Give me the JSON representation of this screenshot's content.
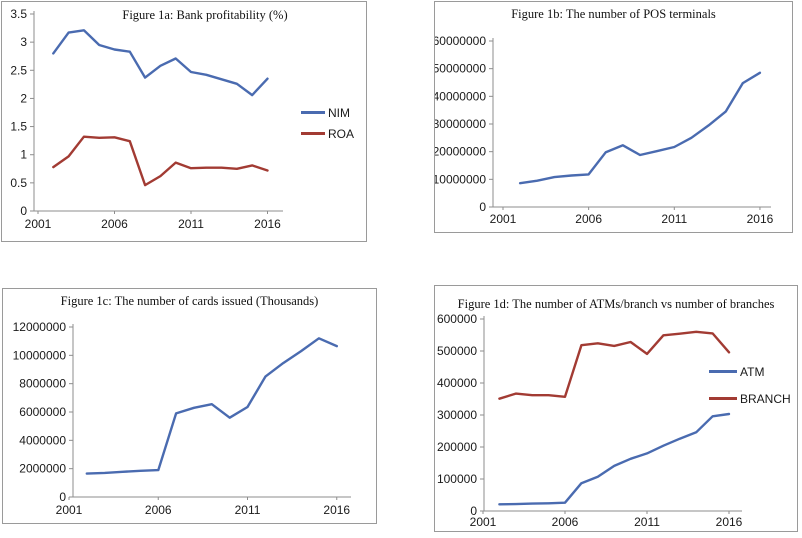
{
  "chart_data": [
    {
      "id": "fig1a",
      "type": "line",
      "title": "Figure 1a: Bank profitability (%)",
      "x": [
        2002,
        2003,
        2004,
        2005,
        2006,
        2007,
        2008,
        2009,
        2010,
        2011,
        2012,
        2013,
        2014,
        2015,
        2016
      ],
      "x_tick_labels": [
        2001,
        2006,
        2011,
        2016
      ],
      "ylim": [
        0,
        3.5
      ],
      "y_tick_step": 0.5,
      "grid": false,
      "legend_position": "right",
      "series": [
        {
          "name": "NIM",
          "color": "#4a6bb0",
          "values": [
            2.8,
            3.17,
            3.21,
            2.95,
            2.87,
            2.83,
            2.37,
            2.58,
            2.71,
            2.47,
            2.42,
            2.34,
            2.26,
            2.06,
            2.35
          ]
        },
        {
          "name": "ROA",
          "color": "#a23b33",
          "values": [
            0.78,
            0.97,
            1.32,
            1.3,
            1.31,
            1.24,
            0.46,
            0.62,
            0.86,
            0.76,
            0.77,
            0.77,
            0.75,
            0.81,
            0.72
          ]
        }
      ]
    },
    {
      "id": "fig1b",
      "type": "line",
      "title": "Figure 1b: The number of POS terminals",
      "x": [
        2002,
        2003,
        2004,
        2005,
        2006,
        2007,
        2008,
        2009,
        2010,
        2011,
        2012,
        2013,
        2014,
        2015,
        2016
      ],
      "x_tick_labels": [
        2001,
        2006,
        2011,
        2016
      ],
      "ylim": [
        0,
        60000000
      ],
      "y_tick_step": 10000000,
      "grid": false,
      "legend_position": "none",
      "series": [
        {
          "color": "#4a6bb0",
          "values": [
            8600000,
            9500000,
            10800000,
            11400000,
            11800000,
            19800000,
            22300000,
            18800000,
            20200000,
            21700000,
            25000000,
            29500000,
            34500000,
            44800000,
            48500000
          ]
        }
      ]
    },
    {
      "id": "fig1c",
      "type": "line",
      "title": "Figure 1c: The number of cards issued (Thousands)",
      "x": [
        2002,
        2003,
        2004,
        2005,
        2006,
        2007,
        2008,
        2009,
        2010,
        2011,
        2012,
        2013,
        2014,
        2015,
        2016
      ],
      "x_tick_labels": [
        2001,
        2006,
        2011,
        2016
      ],
      "ylim": [
        0,
        12000000
      ],
      "y_tick_step": 2000000,
      "grid": false,
      "legend_position": "none",
      "series": [
        {
          "color": "#4a6bb0",
          "values": [
            1650000,
            1700000,
            1780000,
            1850000,
            1900000,
            5900000,
            6300000,
            6550000,
            5600000,
            6350000,
            8500000,
            9450000,
            10300000,
            11200000,
            10650000
          ]
        }
      ]
    },
    {
      "id": "fig1d",
      "type": "line",
      "title": "Figure 1d: The number of ATMs/branch vs number of branches",
      "x": [
        2002,
        2003,
        2004,
        2005,
        2006,
        2007,
        2008,
        2009,
        2010,
        2011,
        2012,
        2013,
        2014,
        2015,
        2016
      ],
      "x_tick_labels": [
        2001,
        2006,
        2011,
        2016
      ],
      "ylim": [
        0,
        600000
      ],
      "y_tick_step": 100000,
      "grid": false,
      "legend_position": "inside-right",
      "series": [
        {
          "name": "ATM",
          "color": "#4a6bb0",
          "values": [
            21000,
            21500,
            23000,
            24000,
            26000,
            87000,
            107000,
            141000,
            163000,
            180000,
            204000,
            226000,
            246000,
            296000,
            303000
          ]
        },
        {
          "name": "BRANCH",
          "color": "#a23b33",
          "values": [
            351000,
            367000,
            362000,
            362000,
            357000,
            518000,
            524000,
            516000,
            528000,
            491000,
            549000,
            554000,
            560000,
            555000,
            496000
          ]
        }
      ]
    }
  ],
  "colors": {
    "series_blue": "#4a6bb0",
    "series_red": "#a23b33",
    "axis": "#8d8d8d",
    "panel_border": "#9a9a9a"
  }
}
